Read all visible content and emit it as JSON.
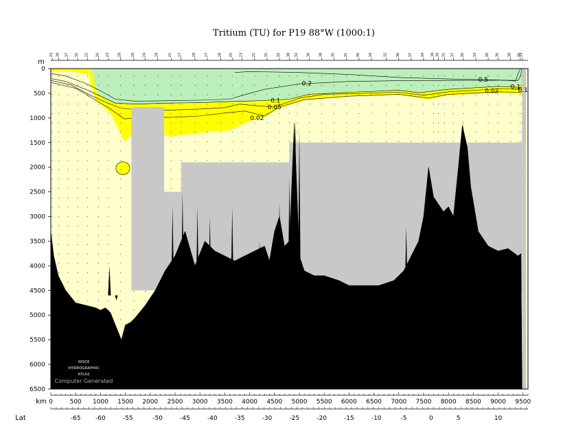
{
  "chart_data": {
    "type": "section",
    "title": "Tritium (TU) for P19 88°W (1000:1)",
    "x_axis": {
      "label": "km",
      "range": [
        0,
        9600
      ],
      "ticks": [
        0,
        500,
        1000,
        1500,
        2000,
        2500,
        3000,
        3500,
        4000,
        4500,
        5000,
        5500,
        6000,
        6500,
        7000,
        7500,
        8000,
        8500,
        9000,
        9500
      ]
    },
    "y_axis": {
      "label": "m",
      "range": [
        0,
        6500
      ],
      "ticks": [
        0,
        500,
        1000,
        1500,
        2000,
        2500,
        3000,
        3500,
        4000,
        4500,
        5000,
        5500,
        6000,
        6500
      ],
      "inverted": true
    },
    "lat_axis": {
      "label": "Lat",
      "ticks": [
        {
          "label": "-65",
          "km": 500
        },
        {
          "label": "-60",
          "km": 1000
        },
        {
          "label": "-55",
          "km": 1550
        },
        {
          "label": "-50",
          "km": 2150
        },
        {
          "label": "-45",
          "km": 2700
        },
        {
          "label": "-40",
          "km": 3250
        },
        {
          "label": "-35",
          "km": 3800
        },
        {
          "label": "-30",
          "km": 4350
        },
        {
          "label": "-25",
          "km": 4900
        },
        {
          "label": "-20",
          "km": 5450
        },
        {
          "label": "-15",
          "km": 6000
        },
        {
          "label": "-10",
          "km": 6550
        },
        {
          "label": "-5",
          "km": 7100
        },
        {
          "label": "0",
          "km": 7650
        },
        {
          "label": "5",
          "km": 8200
        },
        {
          "label": "10",
          "km": 9000
        }
      ]
    },
    "contour_levels": [
      0.02,
      0.05,
      0.1,
      0.2,
      0.5
    ],
    "contour_labels": [
      {
        "text": "0.2",
        "km": 5150,
        "depth": 300
      },
      {
        "text": "0.5",
        "km": 8700,
        "depth": 220
      },
      {
        "text": "0.1",
        "km": 9350,
        "depth": 370
      },
      {
        "text": "0.02",
        "km": 8870,
        "depth": 450
      },
      {
        "text": "0.1",
        "km": 9500,
        "depth": 430
      },
      {
        "text": "0.1",
        "km": 4520,
        "depth": 650
      },
      {
        "text": "0.05",
        "km": 4500,
        "depth": 780
      },
      {
        "text": "0.02",
        "km": 4150,
        "depth": 1000
      }
    ],
    "color_bands": [
      {
        "range": "< 0.02",
        "color": "#ffffcc"
      },
      {
        "range": "0.02 – 0.2",
        "color": "#ffff00"
      },
      {
        "range": "> 0.2",
        "color": "#bbf0bb"
      },
      {
        "range": "no data",
        "color": "#c8c8c8"
      },
      {
        "range": "bottom",
        "color": "#000000"
      }
    ],
    "contours": {
      "c020": [
        [
          0,
          100
        ],
        [
          300,
          150
        ],
        [
          700,
          300
        ],
        [
          1000,
          450
        ],
        [
          1300,
          620
        ],
        [
          1700,
          660
        ],
        [
          2400,
          650
        ],
        [
          3000,
          640
        ],
        [
          3600,
          620
        ],
        [
          3900,
          530
        ],
        [
          4300,
          420
        ],
        [
          5000,
          310
        ],
        [
          6000,
          260
        ],
        [
          7000,
          245
        ],
        [
          8000,
          240
        ],
        [
          9000,
          235
        ],
        [
          9400,
          240
        ],
        [
          9450,
          150
        ],
        [
          9480,
          0
        ]
      ],
      "c010": [
        [
          0,
          200
        ],
        [
          300,
          260
        ],
        [
          700,
          420
        ],
        [
          1000,
          560
        ],
        [
          1300,
          700
        ],
        [
          1700,
          720
        ],
        [
          2300,
          700
        ],
        [
          3000,
          690
        ],
        [
          3600,
          670
        ],
        [
          4200,
          650
        ],
        [
          4800,
          620
        ],
        [
          5200,
          520
        ],
        [
          6000,
          480
        ],
        [
          7000,
          440
        ],
        [
          7400,
          490
        ],
        [
          8000,
          420
        ],
        [
          9000,
          360
        ],
        [
          9480,
          380
        ]
      ],
      "c005": [
        [
          0,
          240
        ],
        [
          400,
          330
        ],
        [
          800,
          540
        ],
        [
          1100,
          680
        ],
        [
          1400,
          800
        ],
        [
          1800,
          840
        ],
        [
          2400,
          840
        ],
        [
          3000,
          820
        ],
        [
          3500,
          790
        ],
        [
          3800,
          720
        ],
        [
          4200,
          760
        ],
        [
          4500,
          780
        ],
        [
          5000,
          600
        ],
        [
          5500,
          520
        ],
        [
          6000,
          510
        ],
        [
          7000,
          480
        ],
        [
          7500,
          540
        ],
        [
          8000,
          470
        ],
        [
          9000,
          410
        ],
        [
          9480,
          420
        ]
      ],
      "c002": [
        [
          0,
          280
        ],
        [
          500,
          400
        ],
        [
          900,
          640
        ],
        [
          1200,
          820
        ],
        [
          1480,
          1020
        ],
        [
          1800,
          990
        ],
        [
          2400,
          990
        ],
        [
          3000,
          960
        ],
        [
          3500,
          900
        ],
        [
          3900,
          860
        ],
        [
          4300,
          960
        ],
        [
          4600,
          780
        ],
        [
          5100,
          630
        ],
        [
          6000,
          560
        ],
        [
          7000,
          520
        ],
        [
          7600,
          600
        ],
        [
          8000,
          520
        ],
        [
          9000,
          470
        ],
        [
          9480,
          480
        ]
      ],
      "c050": [
        [
          3700,
          80
        ],
        [
          4000,
          60
        ],
        [
          5000,
          80
        ],
        [
          6000,
          120
        ],
        [
          7000,
          180
        ],
        [
          8000,
          210
        ],
        [
          9000,
          230
        ],
        [
          9350,
          250
        ],
        [
          9400,
          100
        ],
        [
          9450,
          0
        ]
      ]
    },
    "yellow_outer": [
      [
        0,
        60
      ],
      [
        400,
        60
      ],
      [
        760,
        120
      ],
      [
        800,
        300
      ],
      [
        900,
        640
      ],
      [
        1200,
        900
      ],
      [
        1480,
        1480
      ],
      [
        1560,
        1400
      ],
      [
        1800,
        1200
      ],
      [
        2400,
        1380
      ],
      [
        3000,
        1300
      ],
      [
        3600,
        1250
      ],
      [
        3900,
        1100
      ],
      [
        4300,
        980
      ],
      [
        4600,
        800
      ],
      [
        5100,
        640
      ],
      [
        6000,
        560
      ],
      [
        7000,
        530
      ],
      [
        7600,
        620
      ],
      [
        8000,
        540
      ],
      [
        9000,
        490
      ],
      [
        9480,
        510
      ],
      [
        9480,
        0
      ],
      [
        0,
        0
      ]
    ],
    "green_outer": [
      [
        800,
        0
      ],
      [
        9480,
        0
      ],
      [
        9480,
        350
      ],
      [
        9000,
        360
      ],
      [
        8000,
        420
      ],
      [
        7400,
        490
      ],
      [
        7000,
        440
      ],
      [
        6000,
        480
      ],
      [
        5200,
        520
      ],
      [
        4800,
        620
      ],
      [
        4200,
        650
      ],
      [
        3600,
        670
      ],
      [
        3000,
        690
      ],
      [
        2300,
        700
      ],
      [
        1700,
        720
      ],
      [
        1300,
        700
      ],
      [
        1000,
        560
      ],
      [
        900,
        420
      ],
      [
        860,
        200
      ],
      [
        800,
        0
      ]
    ],
    "lens": {
      "km": 1450,
      "depth": 2020,
      "rx": 140,
      "ry": 130
    },
    "nodata_regions": [
      [
        [
          1620,
          780
        ],
        [
          2280,
          780
        ],
        [
          2280,
          2500
        ],
        [
          2620,
          2500
        ],
        [
          2620,
          1900
        ],
        [
          4800,
          1900
        ],
        [
          4800,
          1500
        ],
        [
          9480,
          1500
        ],
        [
          9480,
          4500
        ],
        [
          1620,
          4500
        ]
      ],
      [
        [
          9480,
          0
        ],
        [
          9560,
          0
        ],
        [
          9560,
          6500
        ],
        [
          9480,
          6500
        ]
      ]
    ],
    "bathymetry": [
      [
        0,
        3300
      ],
      [
        60,
        3800
      ],
      [
        150,
        4200
      ],
      [
        300,
        4500
      ],
      [
        500,
        4750
      ],
      [
        700,
        4800
      ],
      [
        900,
        4850
      ],
      [
        1000,
        4900
      ],
      [
        1100,
        4850
      ],
      [
        1200,
        4950
      ],
      [
        1300,
        5200
      ],
      [
        1420,
        5500
      ],
      [
        1500,
        5200
      ],
      [
        1600,
        5150
      ],
      [
        1700,
        5050
      ],
      [
        1900,
        4800
      ],
      [
        2100,
        4500
      ],
      [
        2300,
        4100
      ],
      [
        2500,
        3800
      ],
      [
        2700,
        3300
      ],
      [
        2900,
        4000
      ],
      [
        3100,
        3500
      ],
      [
        3300,
        3700
      ],
      [
        3500,
        3800
      ],
      [
        3700,
        3900
      ],
      [
        3900,
        3800
      ],
      [
        4100,
        3700
      ],
      [
        4300,
        3600
      ],
      [
        4400,
        3900
      ],
      [
        4500,
        3300
      ],
      [
        4600,
        3000
      ],
      [
        4700,
        3600
      ],
      [
        4800,
        3500
      ],
      [
        4900,
        1100
      ],
      [
        5000,
        3800
      ],
      [
        5100,
        4100
      ],
      [
        5300,
        4200
      ],
      [
        5500,
        4200
      ],
      [
        5800,
        4300
      ],
      [
        6000,
        4400
      ],
      [
        6300,
        4400
      ],
      [
        6600,
        4400
      ],
      [
        6900,
        4300
      ],
      [
        7100,
        4100
      ],
      [
        7300,
        3700
      ],
      [
        7400,
        3500
      ],
      [
        7500,
        3000
      ],
      [
        7600,
        2000
      ],
      [
        7700,
        2600
      ],
      [
        7900,
        2900
      ],
      [
        8000,
        2800
      ],
      [
        8100,
        3000
      ],
      [
        8200,
        2000
      ],
      [
        8280,
        1150
      ],
      [
        8380,
        1600
      ],
      [
        8450,
        2400
      ],
      [
        8600,
        3300
      ],
      [
        8800,
        3600
      ],
      [
        9000,
        3700
      ],
      [
        9200,
        3650
      ],
      [
        9400,
        3800
      ],
      [
        9460,
        3750
      ],
      [
        9480,
        6400
      ]
    ],
    "spikes": [
      {
        "km": 1180,
        "top": 4000
      },
      {
        "km": 1320,
        "top": 4700
      },
      {
        "km": 2450,
        "top": 2800
      },
      {
        "km": 2650,
        "top": 2500
      },
      {
        "km": 2950,
        "top": 2800
      },
      {
        "km": 3200,
        "top": 3000
      },
      {
        "km": 3650,
        "top": 2800
      },
      {
        "km": 4200,
        "top": 3500
      },
      {
        "km": 4600,
        "top": 2700
      },
      {
        "km": 4800,
        "top": 2200
      },
      {
        "km": 4920,
        "top": 1000
      },
      {
        "km": 5000,
        "top": 1200
      },
      {
        "km": 7150,
        "top": 3200
      },
      {
        "km": 8300,
        "top": 1000
      }
    ],
    "stations_km": [
      30,
      160,
      340,
      540,
      740,
      960,
      1160,
      1400,
      1670,
      1900,
      2150,
      2420,
      2620,
      2900,
      3150,
      3420,
      3650,
      3850,
      4100,
      4350,
      4600,
      4800,
      4960,
      5200,
      5450,
      5700,
      5950,
      6200,
      6450,
      6750,
      7000,
      7250,
      7500,
      7700,
      7800,
      7920,
      8100,
      8300,
      8550,
      8800,
      9000,
      9250,
      9440,
      9480
    ],
    "station_labels": [
      "3|3",
      "3|9",
      "3|7",
      "3|2",
      "2|2",
      "2|6",
      "2|3",
      "2|8",
      "2|0",
      "2|4",
      "2|9",
      "2|1",
      "2|7",
      "2|9",
      "2|7",
      "2|8",
      "2|5",
      "2|3",
      "2|1",
      "3|1",
      "3|2",
      "3|8",
      "3|2",
      "3|6",
      "3|8",
      "3|5",
      "3|1",
      "3|0",
      "3|4",
      "3|2",
      "3|6",
      "3|7",
      "3|4",
      "3|9",
      "3|0",
      "3|1",
      "3|7",
      "3|5",
      "3|3",
      "3|0",
      "3|6",
      "3|8",
      "3|5",
      "3|3"
    ],
    "watermark": {
      "lines": [
        "WOCE",
        "HYDROGRAPHIC",
        "ATLAS"
      ],
      "caption": "Computer Generated"
    }
  }
}
